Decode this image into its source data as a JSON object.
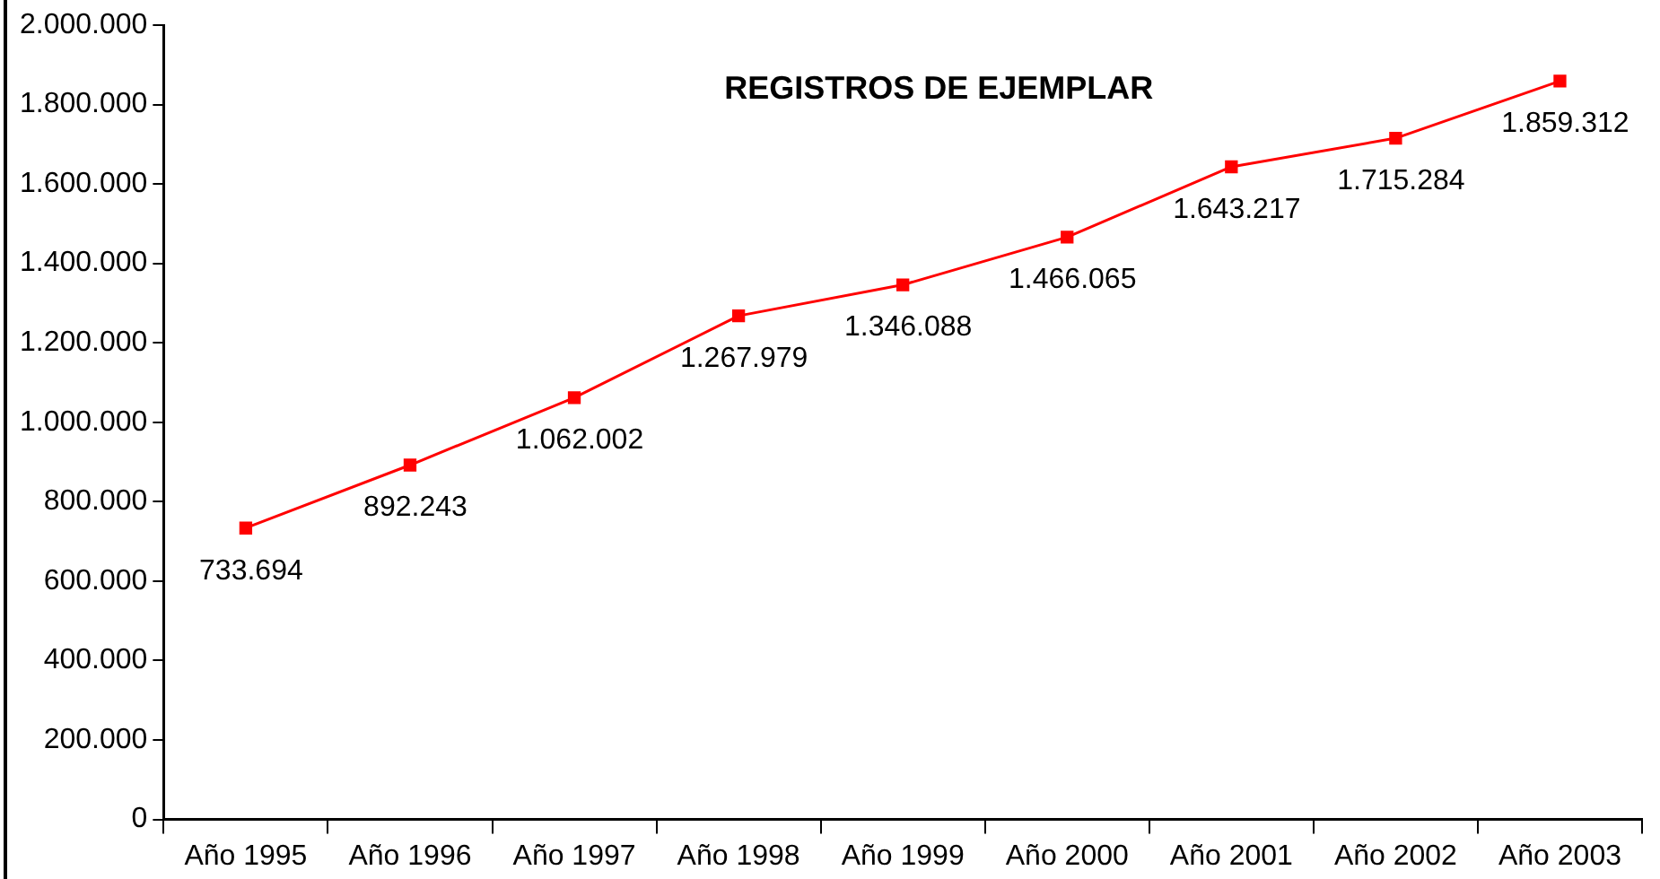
{
  "chart_data": {
    "type": "line",
    "title": "REGISTROS DE EJEMPLAR",
    "categories": [
      "Año 1995",
      "Año 1996",
      "Año 1997",
      "Año 1998",
      "Año 1999",
      "Año 2000",
      "Año 2001",
      "Año 2002",
      "Año 2003"
    ],
    "series": [
      {
        "color": "#ff0000",
        "values": [
          733694,
          892243,
          1062002,
          1267979,
          1346088,
          1466065,
          1643217,
          1715284,
          1859312
        ],
        "value_labels": [
          "733.694",
          "892.243",
          "1.062.002",
          "1.267.979",
          "1.346.088",
          "1.466.065",
          "1.643.217",
          "1.715.284",
          "1.859.312"
        ]
      }
    ],
    "ylim": [
      0,
      2000000
    ],
    "yticks": [
      {
        "value": 0,
        "label": "0"
      },
      {
        "value": 200000,
        "label": "200.000"
      },
      {
        "value": 400000,
        "label": "400.000"
      },
      {
        "value": 600000,
        "label": "600.000"
      },
      {
        "value": 800000,
        "label": "800.000"
      },
      {
        "value": 1000000,
        "label": "1.000.000"
      },
      {
        "value": 1200000,
        "label": "1.200.000"
      },
      {
        "value": 1400000,
        "label": "1.400.000"
      },
      {
        "value": 1600000,
        "label": "1.600.000"
      },
      {
        "value": 1800000,
        "label": "1.800.000"
      },
      {
        "value": 2000000,
        "label": "2.000.000"
      }
    ],
    "grid": false,
    "legend": false,
    "marker": "square",
    "line_style": "solid"
  }
}
